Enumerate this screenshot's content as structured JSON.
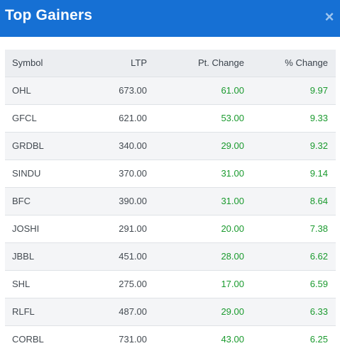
{
  "dialog": {
    "title": "Top Gainers",
    "close_label": "×"
  },
  "table": {
    "headers": [
      "Symbol",
      "LTP",
      "Pt. Change",
      "% Change"
    ],
    "rows": [
      {
        "symbol": "OHL",
        "ltp": "673.00",
        "pt_change": "61.00",
        "pct_change": "9.97"
      },
      {
        "symbol": "GFCL",
        "ltp": "621.00",
        "pt_change": "53.00",
        "pct_change": "9.33"
      },
      {
        "symbol": "GRDBL",
        "ltp": "340.00",
        "pt_change": "29.00",
        "pct_change": "9.32"
      },
      {
        "symbol": "SINDU",
        "ltp": "370.00",
        "pt_change": "31.00",
        "pct_change": "9.14"
      },
      {
        "symbol": "BFC",
        "ltp": "390.00",
        "pt_change": "31.00",
        "pct_change": "8.64"
      },
      {
        "symbol": "JOSHI",
        "ltp": "291.00",
        "pt_change": "20.00",
        "pct_change": "7.38"
      },
      {
        "symbol": "JBBL",
        "ltp": "451.00",
        "pt_change": "28.00",
        "pct_change": "6.62"
      },
      {
        "symbol": "SHL",
        "ltp": "275.00",
        "pt_change": "17.00",
        "pct_change": "6.59"
      },
      {
        "symbol": "RLFL",
        "ltp": "487.00",
        "pt_change": "29.00",
        "pct_change": "6.33"
      },
      {
        "symbol": "CORBL",
        "ltp": "731.00",
        "pt_change": "43.00",
        "pct_change": "6.25"
      }
    ]
  },
  "colors": {
    "header_bg": "#1670d4",
    "positive": "#1a9a2e"
  }
}
